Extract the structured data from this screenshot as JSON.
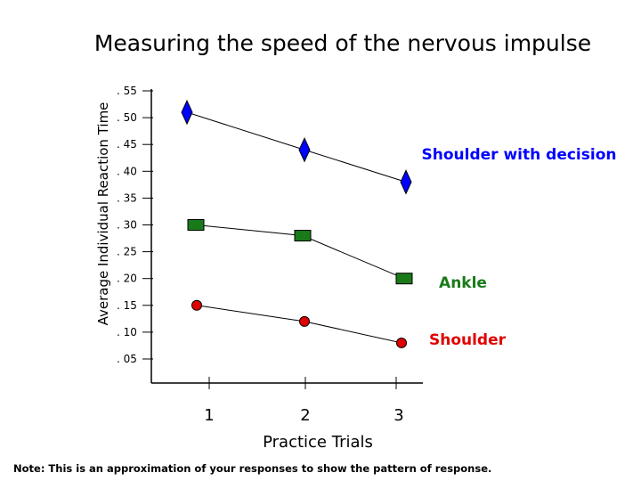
{
  "chart_data": {
    "type": "line",
    "title": "Measuring the speed of the nervous impulse",
    "xlabel": "Practice Trials",
    "ylabel": "Average Individual Reaction Time",
    "x": [
      1,
      2,
      3
    ],
    "x_tick_labels": [
      "1",
      "2",
      "3"
    ],
    "y_tick_labels": [
      ". 55",
      ". 50",
      ". 45",
      ". 40",
      ". 35",
      ". 30",
      ". 25",
      ". 20",
      ". 15",
      ". 10",
      ". 05"
    ],
    "ylim": [
      0.0,
      0.57
    ],
    "grid": false,
    "series": [
      {
        "name": "Shoulder with decision",
        "values": [
          0.51,
          0.44,
          0.38
        ],
        "color": "#0000ff",
        "marker": "diamond"
      },
      {
        "name": "Ankle",
        "values": [
          0.3,
          0.28,
          0.2
        ],
        "color": "#1a7a1a",
        "marker": "square"
      },
      {
        "name": "Shoulder",
        "values": [
          0.15,
          0.12,
          0.08
        ],
        "color": "#e00000",
        "marker": "circle"
      }
    ],
    "note": "Note: This is an approximation of your responses to show the pattern of response."
  }
}
